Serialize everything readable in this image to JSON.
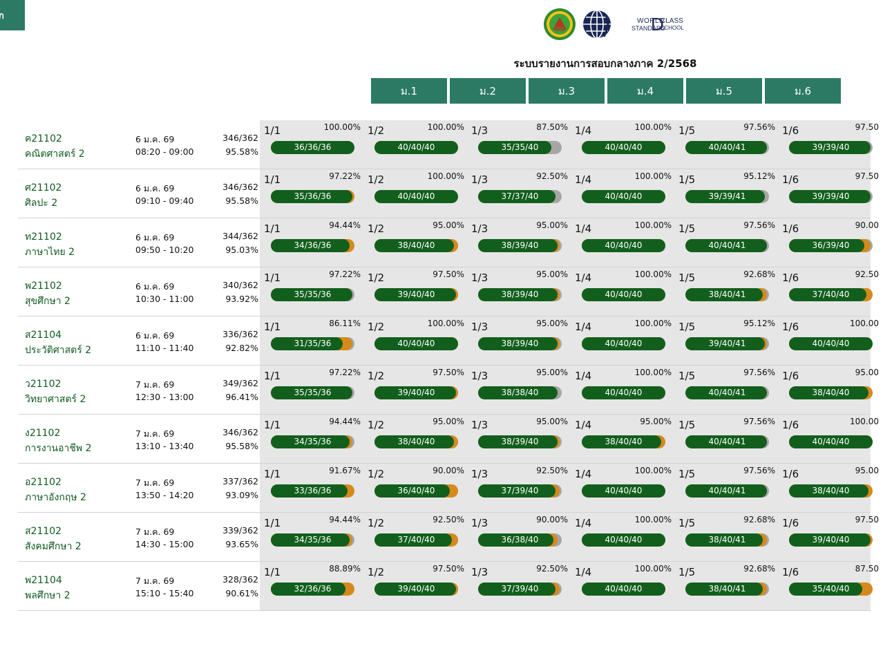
{
  "corner_button": {
    "label": "ก"
  },
  "header": {
    "logo_text": {
      "line1": "WORLD",
      "line2": "STANDARD",
      "big": "D",
      "class": "CLASS",
      "school": "SCHOOL"
    },
    "title": "ระบบรายงานการสอบกลางภาค 2/2568"
  },
  "grades": [
    "ม.1",
    "ม.2",
    "ม.3",
    "ม.4",
    "ม.5",
    "ม.6"
  ],
  "colors": {
    "primary": "#2c7a63",
    "bar_green": "#125f1d",
    "bar_orange": "#d68a1c",
    "bar_gray": "#a6a6a6"
  },
  "subjects": [
    {
      "code": "ค21102",
      "name": "คณิตศาสตร์ 2",
      "date": "6 ม.ค. 69",
      "time": "08:20 - 09:00",
      "count": "346/362",
      "percent": "95.58%",
      "classes": [
        {
          "name": "1/1",
          "pct": "100.00%",
          "text": "36/36/36",
          "a": 36,
          "b": 36,
          "c": 36
        },
        {
          "name": "1/2",
          "pct": "100.00%",
          "text": "40/40/40",
          "a": 40,
          "b": 40,
          "c": 40
        },
        {
          "name": "1/3",
          "pct": "87.50%",
          "text": "35/35/40",
          "a": 35,
          "b": 35,
          "c": 40
        },
        {
          "name": "1/4",
          "pct": "100.00%",
          "text": "40/40/40",
          "a": 40,
          "b": 40,
          "c": 40
        },
        {
          "name": "1/5",
          "pct": "97.56%",
          "text": "40/40/41",
          "a": 40,
          "b": 40,
          "c": 41
        },
        {
          "name": "1/6",
          "pct": "97.50",
          "text": "39/39/40",
          "a": 39,
          "b": 39,
          "c": 40
        }
      ]
    },
    {
      "code": "ศ21102",
      "name": "ศิลปะ 2",
      "date": "6 ม.ค. 69",
      "time": "09:10 - 09:40",
      "count": "346/362",
      "percent": "95.58%",
      "classes": [
        {
          "name": "1/1",
          "pct": "97.22%",
          "text": "35/36/36",
          "a": 35,
          "b": 36,
          "c": 36
        },
        {
          "name": "1/2",
          "pct": "100.00%",
          "text": "40/40/40",
          "a": 40,
          "b": 40,
          "c": 40
        },
        {
          "name": "1/3",
          "pct": "92.50%",
          "text": "37/37/40",
          "a": 37,
          "b": 37,
          "c": 40
        },
        {
          "name": "1/4",
          "pct": "100.00%",
          "text": "40/40/40",
          "a": 40,
          "b": 40,
          "c": 40
        },
        {
          "name": "1/5",
          "pct": "95.12%",
          "text": "39/39/41",
          "a": 39,
          "b": 39,
          "c": 41
        },
        {
          "name": "1/6",
          "pct": "97.50",
          "text": "39/39/40",
          "a": 39,
          "b": 39,
          "c": 40
        }
      ]
    },
    {
      "code": "ท21102",
      "name": "ภาษาไทย 2",
      "date": "6 ม.ค. 69",
      "time": "09:50 - 10:20",
      "count": "344/362",
      "percent": "95.03%",
      "classes": [
        {
          "name": "1/1",
          "pct": "94.44%",
          "text": "34/36/36",
          "a": 34,
          "b": 36,
          "c": 36
        },
        {
          "name": "1/2",
          "pct": "95.00%",
          "text": "38/40/40",
          "a": 38,
          "b": 40,
          "c": 40
        },
        {
          "name": "1/3",
          "pct": "95.00%",
          "text": "38/39/40",
          "a": 38,
          "b": 39,
          "c": 40
        },
        {
          "name": "1/4",
          "pct": "100.00%",
          "text": "40/40/40",
          "a": 40,
          "b": 40,
          "c": 40
        },
        {
          "name": "1/5",
          "pct": "97.56%",
          "text": "40/40/41",
          "a": 40,
          "b": 40,
          "c": 41
        },
        {
          "name": "1/6",
          "pct": "90.00",
          "text": "36/39/40",
          "a": 36,
          "b": 39,
          "c": 40
        }
      ]
    },
    {
      "code": "พ21102",
      "name": "สุขศึกษา 2",
      "date": "6 ม.ค. 69",
      "time": "10:30 - 11:00",
      "count": "340/362",
      "percent": "93.92%",
      "classes": [
        {
          "name": "1/1",
          "pct": "97.22%",
          "text": "35/35/36",
          "a": 35,
          "b": 35,
          "c": 36
        },
        {
          "name": "1/2",
          "pct": "97.50%",
          "text": "39/40/40",
          "a": 39,
          "b": 40,
          "c": 40
        },
        {
          "name": "1/3",
          "pct": "95.00%",
          "text": "38/39/40",
          "a": 38,
          "b": 39,
          "c": 40
        },
        {
          "name": "1/4",
          "pct": "100.00%",
          "text": "40/40/40",
          "a": 40,
          "b": 40,
          "c": 40
        },
        {
          "name": "1/5",
          "pct": "92.68%",
          "text": "38/40/41",
          "a": 38,
          "b": 40,
          "c": 41
        },
        {
          "name": "1/6",
          "pct": "92.50",
          "text": "37/40/40",
          "a": 37,
          "b": 40,
          "c": 40
        }
      ]
    },
    {
      "code": "ส21104",
      "name": "ประวัติศาสตร์ 2",
      "date": "6 ม.ค. 69",
      "time": "11:10 - 11:40",
      "count": "336/362",
      "percent": "92.82%",
      "classes": [
        {
          "name": "1/1",
          "pct": "86.11%",
          "text": "31/35/36",
          "a": 31,
          "b": 35,
          "c": 36
        },
        {
          "name": "1/2",
          "pct": "100.00%",
          "text": "40/40/40",
          "a": 40,
          "b": 40,
          "c": 40
        },
        {
          "name": "1/3",
          "pct": "95.00%",
          "text": "38/39/40",
          "a": 38,
          "b": 39,
          "c": 40
        },
        {
          "name": "1/4",
          "pct": "100.00%",
          "text": "40/40/40",
          "a": 40,
          "b": 40,
          "c": 40
        },
        {
          "name": "1/5",
          "pct": "95.12%",
          "text": "39/40/41",
          "a": 39,
          "b": 40,
          "c": 41
        },
        {
          "name": "1/6",
          "pct": "100.00",
          "text": "40/40/40",
          "a": 40,
          "b": 40,
          "c": 40
        }
      ]
    },
    {
      "code": "ว21102",
      "name": "วิทยาศาสตร์ 2",
      "date": "7 ม.ค. 69",
      "time": "12:30 - 13:00",
      "count": "349/362",
      "percent": "96.41%",
      "classes": [
        {
          "name": "1/1",
          "pct": "97.22%",
          "text": "35/35/36",
          "a": 35,
          "b": 35,
          "c": 36
        },
        {
          "name": "1/2",
          "pct": "97.50%",
          "text": "39/40/40",
          "a": 39,
          "b": 40,
          "c": 40
        },
        {
          "name": "1/3",
          "pct": "95.00%",
          "text": "38/38/40",
          "a": 38,
          "b": 38,
          "c": 40
        },
        {
          "name": "1/4",
          "pct": "100.00%",
          "text": "40/40/40",
          "a": 40,
          "b": 40,
          "c": 40
        },
        {
          "name": "1/5",
          "pct": "97.56%",
          "text": "40/40/41",
          "a": 40,
          "b": 40,
          "c": 41
        },
        {
          "name": "1/6",
          "pct": "95.00",
          "text": "38/40/40",
          "a": 38,
          "b": 40,
          "c": 40
        }
      ]
    },
    {
      "code": "ง21102",
      "name": "การงานอาชีพ 2",
      "date": "7 ม.ค. 69",
      "time": "13:10 - 13:40",
      "count": "346/362",
      "percent": "95.58%",
      "classes": [
        {
          "name": "1/1",
          "pct": "94.44%",
          "text": "34/35/36",
          "a": 34,
          "b": 35,
          "c": 36
        },
        {
          "name": "1/2",
          "pct": "95.00%",
          "text": "38/40/40",
          "a": 38,
          "b": 40,
          "c": 40
        },
        {
          "name": "1/3",
          "pct": "95.00%",
          "text": "38/39/40",
          "a": 38,
          "b": 39,
          "c": 40
        },
        {
          "name": "1/4",
          "pct": "95.00%",
          "text": "38/40/40",
          "a": 38,
          "b": 40,
          "c": 40
        },
        {
          "name": "1/5",
          "pct": "97.56%",
          "text": "40/40/41",
          "a": 40,
          "b": 40,
          "c": 41
        },
        {
          "name": "1/6",
          "pct": "100.00",
          "text": "40/40/40",
          "a": 40,
          "b": 40,
          "c": 40
        }
      ]
    },
    {
      "code": "อ21102",
      "name": "ภาษาอังกฤษ 2",
      "date": "7 ม.ค. 69",
      "time": "13:50 - 14:20",
      "count": "337/362",
      "percent": "93.09%",
      "classes": [
        {
          "name": "1/1",
          "pct": "91.67%",
          "text": "33/36/36",
          "a": 33,
          "b": 36,
          "c": 36
        },
        {
          "name": "1/2",
          "pct": "90.00%",
          "text": "36/40/40",
          "a": 36,
          "b": 40,
          "c": 40
        },
        {
          "name": "1/3",
          "pct": "92.50%",
          "text": "37/39/40",
          "a": 37,
          "b": 39,
          "c": 40
        },
        {
          "name": "1/4",
          "pct": "100.00%",
          "text": "40/40/40",
          "a": 40,
          "b": 40,
          "c": 40
        },
        {
          "name": "1/5",
          "pct": "97.56%",
          "text": "40/40/41",
          "a": 40,
          "b": 40,
          "c": 41
        },
        {
          "name": "1/6",
          "pct": "95.00",
          "text": "38/40/40",
          "a": 38,
          "b": 40,
          "c": 40
        }
      ]
    },
    {
      "code": "ส21102",
      "name": "สังคมศึกษา 2",
      "date": "7 ม.ค. 69",
      "time": "14:30 - 15:00",
      "count": "339/362",
      "percent": "93.65%",
      "classes": [
        {
          "name": "1/1",
          "pct": "94.44%",
          "text": "34/35/36",
          "a": 34,
          "b": 35,
          "c": 36
        },
        {
          "name": "1/2",
          "pct": "92.50%",
          "text": "37/40/40",
          "a": 37,
          "b": 40,
          "c": 40
        },
        {
          "name": "1/3",
          "pct": "90.00%",
          "text": "36/38/40",
          "a": 36,
          "b": 38,
          "c": 40
        },
        {
          "name": "1/4",
          "pct": "100.00%",
          "text": "40/40/40",
          "a": 40,
          "b": 40,
          "c": 40
        },
        {
          "name": "1/5",
          "pct": "92.68%",
          "text": "38/40/41",
          "a": 38,
          "b": 40,
          "c": 41
        },
        {
          "name": "1/6",
          "pct": "97.50",
          "text": "39/40/40",
          "a": 39,
          "b": 40,
          "c": 40
        }
      ]
    },
    {
      "code": "พ21104",
      "name": "พลศึกษา 2",
      "date": "7 ม.ค. 69",
      "time": "15:10 - 15:40",
      "count": "328/362",
      "percent": "90.61%",
      "classes": [
        {
          "name": "1/1",
          "pct": "88.89%",
          "text": "32/36/36",
          "a": 32,
          "b": 36,
          "c": 36
        },
        {
          "name": "1/2",
          "pct": "97.50%",
          "text": "39/40/40",
          "a": 39,
          "b": 40,
          "c": 40
        },
        {
          "name": "1/3",
          "pct": "92.50%",
          "text": "37/39/40",
          "a": 37,
          "b": 39,
          "c": 40
        },
        {
          "name": "1/4",
          "pct": "100.00%",
          "text": "40/40/40",
          "a": 40,
          "b": 40,
          "c": 40
        },
        {
          "name": "1/5",
          "pct": "92.68%",
          "text": "38/40/41",
          "a": 38,
          "b": 40,
          "c": 41
        },
        {
          "name": "1/6",
          "pct": "87.50",
          "text": "35/40/40",
          "a": 35,
          "b": 40,
          "c": 40
        }
      ]
    }
  ]
}
